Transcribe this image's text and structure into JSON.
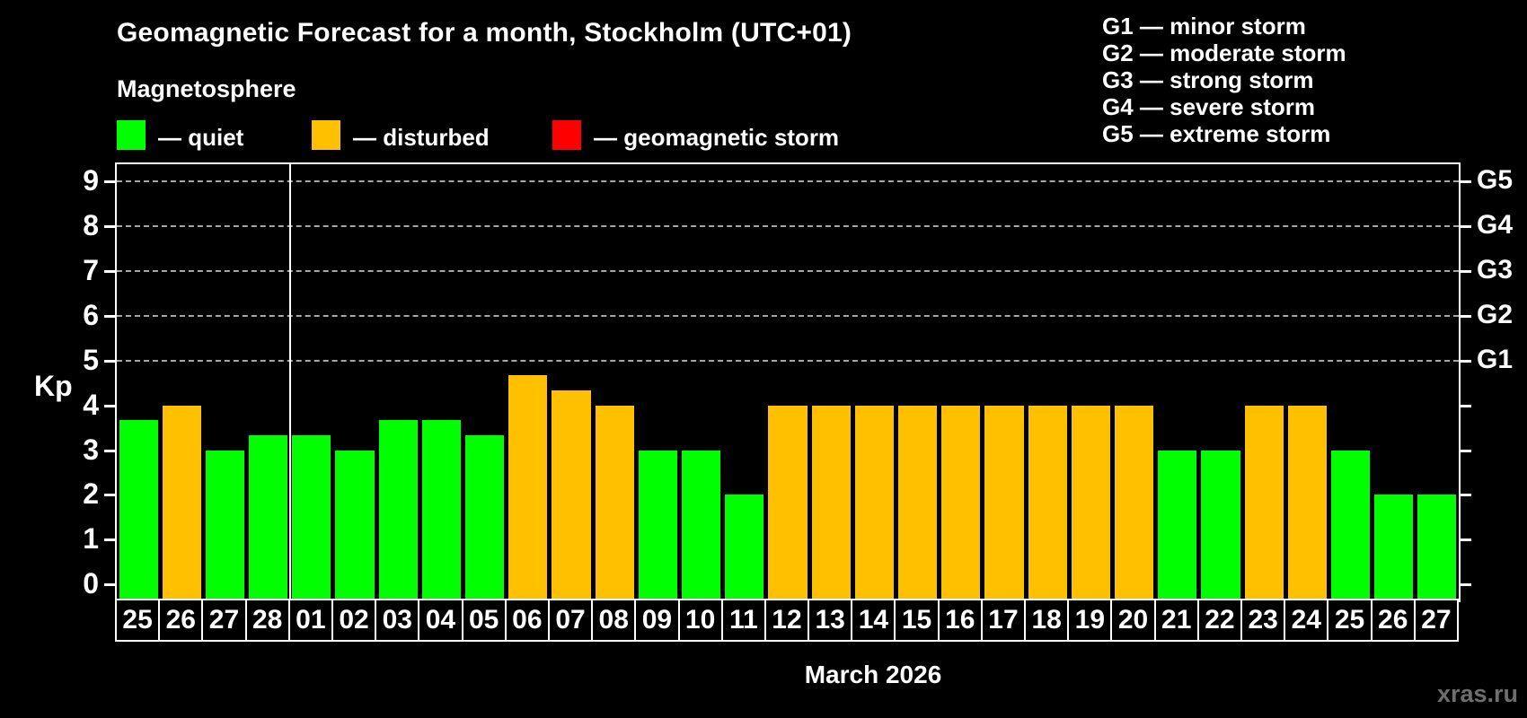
{
  "title": "Geomagnetic Forecast for a month, Stockholm (UTC+01)",
  "subtitle": "Magnetosphere",
  "status_legend": [
    {
      "name": "quiet",
      "label": "— quiet",
      "color": "#00ff00"
    },
    {
      "name": "disturbed",
      "label": "— disturbed",
      "color": "#ffc000"
    },
    {
      "name": "storm",
      "label": "— geomagnetic storm",
      "color": "#ff0000"
    }
  ],
  "storm_scale_legend": [
    "G1 — minor storm",
    "G2 — moderate storm",
    "G3 — strong storm",
    "G4 — severe storm",
    "G5 — extreme storm"
  ],
  "watermark": "xras.ru",
  "chart_data": {
    "type": "bar",
    "title": "Geomagnetic Forecast for a month, Stockholm (UTC+01)",
    "ylabel": "Kp",
    "xlabel": "March 2026",
    "ylim": [
      0,
      9
    ],
    "yticks": [
      0,
      1,
      2,
      3,
      4,
      5,
      6,
      7,
      8,
      9
    ],
    "dashed_gridlines_at": [
      5,
      6,
      7,
      8,
      9
    ],
    "right_axis_labels": [
      {
        "kp": 5,
        "label": "G1"
      },
      {
        "kp": 6,
        "label": "G2"
      },
      {
        "kp": 7,
        "label": "G3"
      },
      {
        "kp": 8,
        "label": "G4"
      },
      {
        "kp": 9,
        "label": "G5"
      }
    ],
    "legend_position": "top-left",
    "grid": "dashed horizontal lines only at Kp 5-9",
    "month_boundary_after_index": 3,
    "categories": [
      "25",
      "26",
      "27",
      "28",
      "01",
      "02",
      "03",
      "04",
      "05",
      "06",
      "07",
      "08",
      "09",
      "10",
      "11",
      "12",
      "13",
      "14",
      "15",
      "16",
      "17",
      "18",
      "19",
      "20",
      "21",
      "22",
      "23",
      "24",
      "25",
      "26",
      "27"
    ],
    "series": [
      {
        "name": "Kp forecast",
        "values": [
          3.67,
          4,
          3,
          3.33,
          3.33,
          3,
          3.67,
          3.67,
          3.33,
          4.67,
          4.33,
          4,
          3,
          3,
          2,
          4,
          4,
          4,
          4,
          4,
          4,
          4,
          4,
          4,
          3,
          3,
          4,
          4,
          3,
          2,
          2
        ],
        "statuses": [
          "quiet",
          "disturbed",
          "quiet",
          "quiet",
          "quiet",
          "quiet",
          "quiet",
          "quiet",
          "quiet",
          "disturbed",
          "disturbed",
          "disturbed",
          "quiet",
          "quiet",
          "quiet",
          "disturbed",
          "disturbed",
          "disturbed",
          "disturbed",
          "disturbed",
          "disturbed",
          "disturbed",
          "disturbed",
          "disturbed",
          "quiet",
          "quiet",
          "disturbed",
          "disturbed",
          "quiet",
          "quiet",
          "quiet"
        ]
      }
    ]
  }
}
